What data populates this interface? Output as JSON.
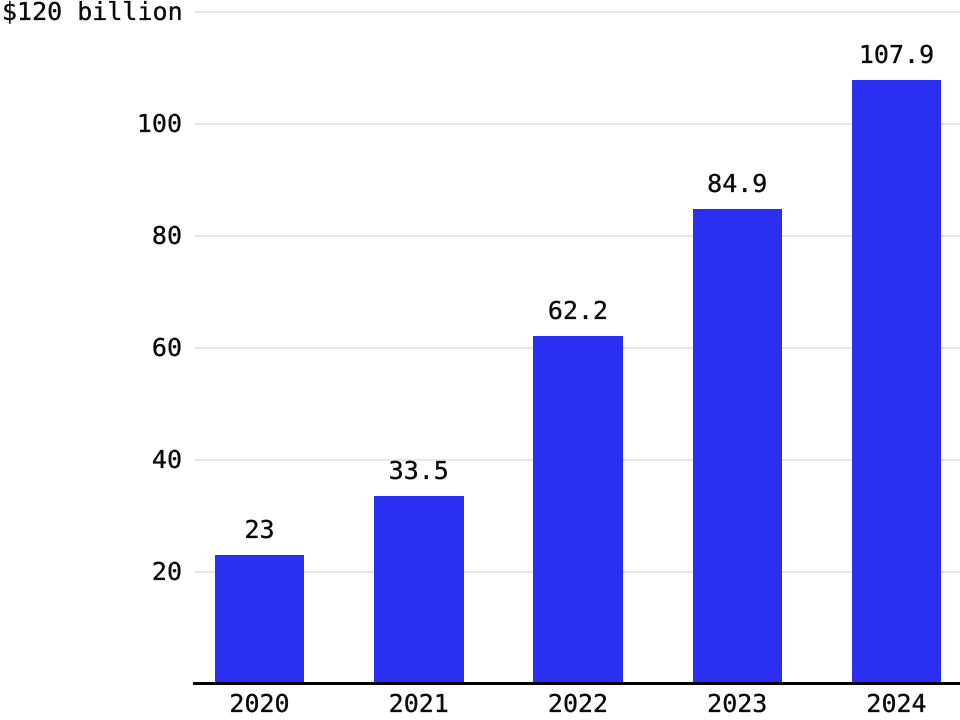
{
  "chart_data": {
    "type": "bar",
    "title": "$120 billion",
    "categories": [
      "2020",
      "2021",
      "2022",
      "2023",
      "2024"
    ],
    "values": [
      23,
      33.5,
      62.2,
      84.9,
      107.9
    ],
    "value_labels": [
      "23",
      "33.5",
      "62.2",
      "84.9",
      "107.9"
    ],
    "ytick_values": [
      20,
      40,
      60,
      80,
      100
    ],
    "ytick_labels": [
      "20",
      "40",
      "60",
      "80",
      "100"
    ],
    "top_gridline_value": 120,
    "ylim": [
      0,
      120
    ],
    "grid": "horizontal",
    "legend": "none",
    "colors": {
      "bar": "#2a2ff0",
      "gridline": "#e8e8e8",
      "axis": "#000000",
      "text": "#0a0a0a"
    }
  }
}
